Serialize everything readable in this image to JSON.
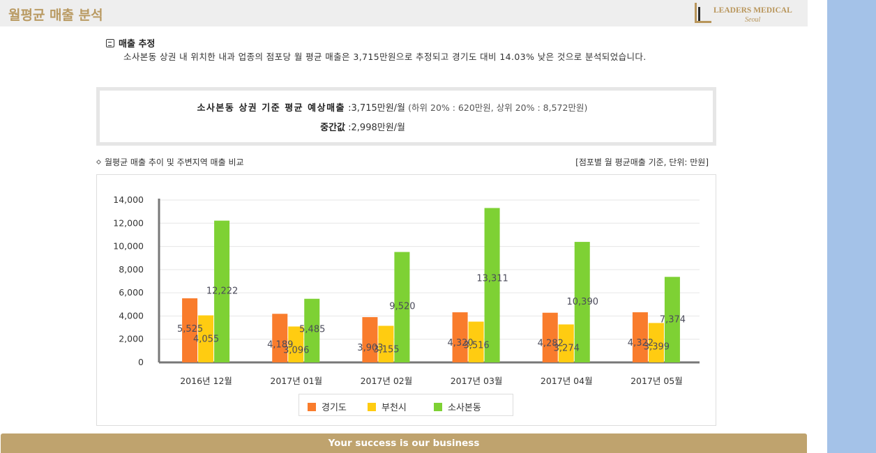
{
  "header": {
    "title": "월평균 매출 분석",
    "logo_name": "LEADERS MEDICAL",
    "logo_sub": "Seoul"
  },
  "section": {
    "heading": "매출 추정",
    "body": "소사본동 상권 내 위치한 내과 업종의 점포당 월 평균 매출은 3,715만원으로 추정되고 경기도 대비 14.03% 낮은 것으로 분석되었습니다."
  },
  "summary": {
    "row1_label": "소사본동 상권 기준 평균 예상매출",
    "row1_value": ":3,715만원/월",
    "row1_range": "(하위 20% : 620만원, 상위 20% : 8,572만원)",
    "row2_label": "중간값",
    "row2_value": ":2,998만원/월"
  },
  "chart_caption": "월평균 매출 추이 및 주변지역 매출 비교",
  "chart_note": "[점포별 월 평균매출 기준, 단위: 만원]",
  "chart_data": {
    "type": "bar",
    "categories": [
      "2016년 12월",
      "2017년 01월",
      "2017년 02월",
      "2017년 03월",
      "2017년 04월",
      "2017년 05월"
    ],
    "series": [
      {
        "name": "경기도",
        "color": "#f97c2c",
        "values": [
          5525,
          4189,
          3903,
          4320,
          4282,
          4322
        ],
        "labels": [
          "5,525",
          "4,189",
          "3,903",
          "4,320",
          "4,282",
          "4,322"
        ]
      },
      {
        "name": "부천시",
        "color": "#ffcc11",
        "values": [
          4055,
          3096,
          3155,
          3516,
          3274,
          3399
        ],
        "labels": [
          "4,055",
          "3,096",
          "3,155",
          "3,516",
          "3,274",
          "3,399"
        ]
      },
      {
        "name": "소사본동",
        "color": "#7ed134",
        "values": [
          12222,
          5485,
          9520,
          13311,
          10390,
          7374
        ],
        "labels": [
          "12,222",
          "5,485",
          "9,520",
          "13,311",
          "10,390",
          "7,374"
        ]
      }
    ],
    "yticks": [
      "0",
      "2,000",
      "4,000",
      "6,000",
      "8,000",
      "10,000",
      "12,000",
      "14,000"
    ],
    "ylim": [
      0,
      14000
    ],
    "grid": true,
    "legend_position": "bottom"
  },
  "footer": {
    "tagline": "Your success is our business"
  }
}
